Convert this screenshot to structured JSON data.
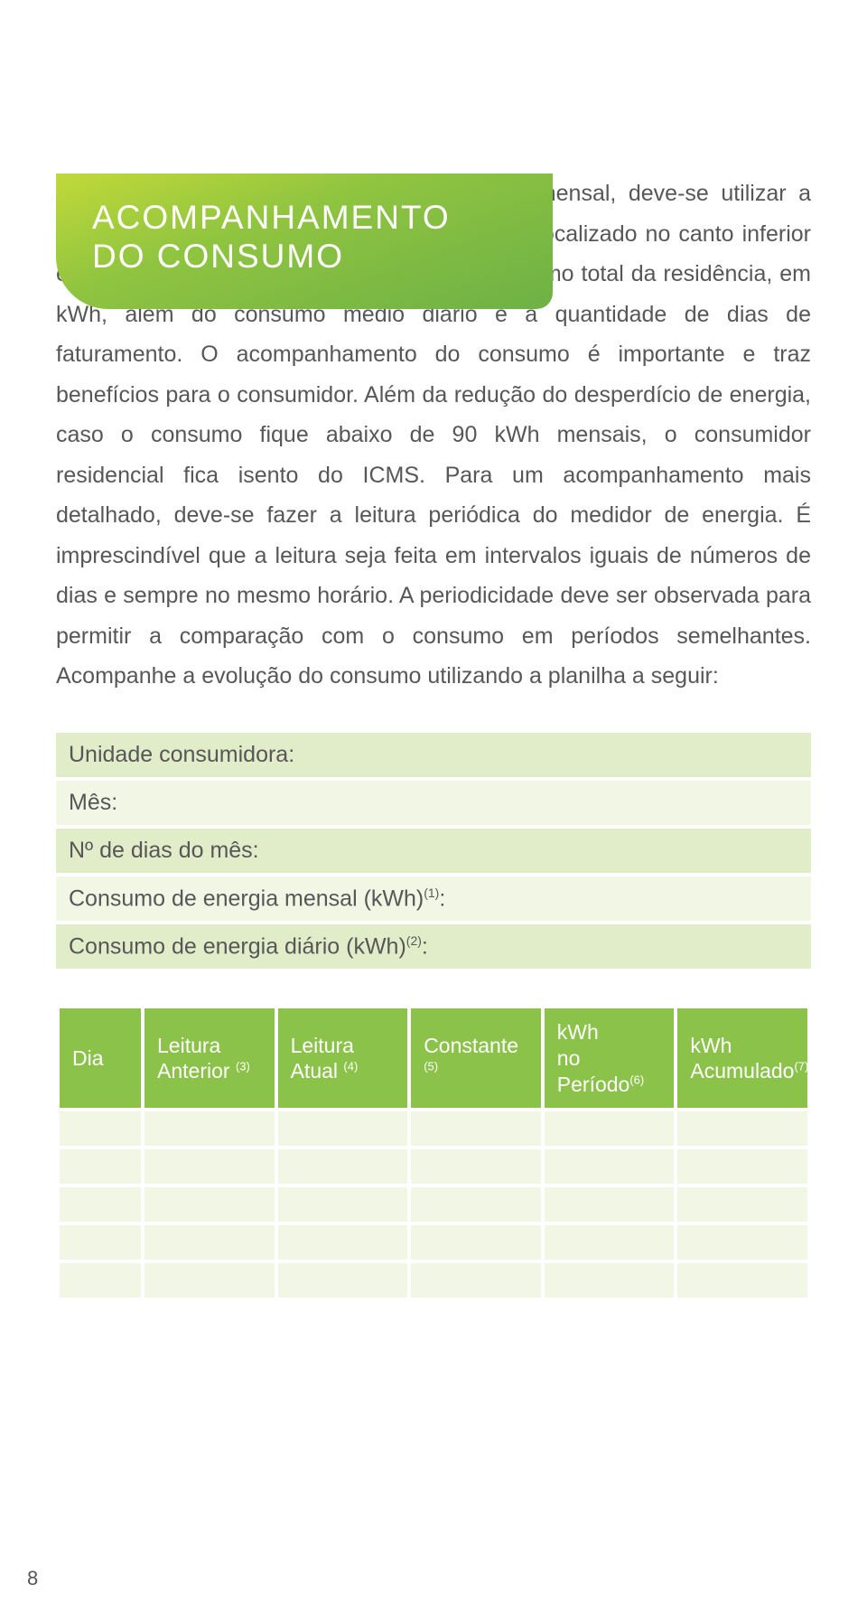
{
  "header": {
    "title_line1": "ACOMPANHAMENTO",
    "title_line2": "DO CONSUMO",
    "bg_gradient_from": "#c1d939",
    "bg_gradient_to": "#6eb146"
  },
  "body_paragraph": "Para fazer o acompanhamento do consumo mensal, deve-se utilizar a conta de energia. O histórico do consumo fica localizado no canto inferior esquerdo da conta de energia e mostra o consumo total da residência, em kWh, além do consumo médio diário e a quantidade de dias de faturamento. O acompanhamento do consumo é importante e traz benefícios para o consumidor. Além da redução do desperdício de energia, caso o consumo fique abaixo de 90 kWh mensais, o consumidor residencial fica isento do ICMS. Para um acompanhamento mais detalhado, deve-se fazer a leitura periódica do medidor de energia. É imprescindível que a leitura seja feita em intervalos iguais de números de dias e sempre no mesmo horário. A periodicidade deve ser observada para permitir a comparação com o consumo em períodos semelhantes. Acompanhe a evolução do consumo utilizando a planilha a seguir:",
  "info_rows": [
    {
      "label": "Unidade consumidora:",
      "shade": "shade"
    },
    {
      "label": "Mês:",
      "shade": "plain"
    },
    {
      "label": "Nº de dias do mês:",
      "shade": "shade"
    },
    {
      "label": "Consumo de energia mensal (kWh)",
      "sup": "(1)",
      "suffix": ":",
      "shade": "plain"
    },
    {
      "label": "Consumo de energia diário (kWh)",
      "sup": "(2)",
      "suffix": ":",
      "shade": "shade"
    }
  ],
  "tracking_table": {
    "header_bg": "#8bc24a",
    "header_fg": "#ffffff",
    "row_bg": "#f2f6e5",
    "columns": [
      {
        "label": "Dia",
        "sup": "",
        "line2": ""
      },
      {
        "label": "Leitura",
        "sup": "(3)",
        "line2": "Anterior "
      },
      {
        "label": "Leitura",
        "sup": "(4)",
        "line2": "Atual "
      },
      {
        "label": "Constante ",
        "sup": "(5)",
        "line2": ""
      },
      {
        "label": "kWh ",
        "sup": "(6)",
        "line2": "no Período"
      },
      {
        "label": "kWh ",
        "sup": "(7)",
        "line2": "Acumulado"
      }
    ],
    "empty_row_count": 5
  },
  "page_number": "8",
  "colors": {
    "text": "#575757",
    "shade_row": "#e1ecc8",
    "plain_row": "#f2f6e5"
  }
}
